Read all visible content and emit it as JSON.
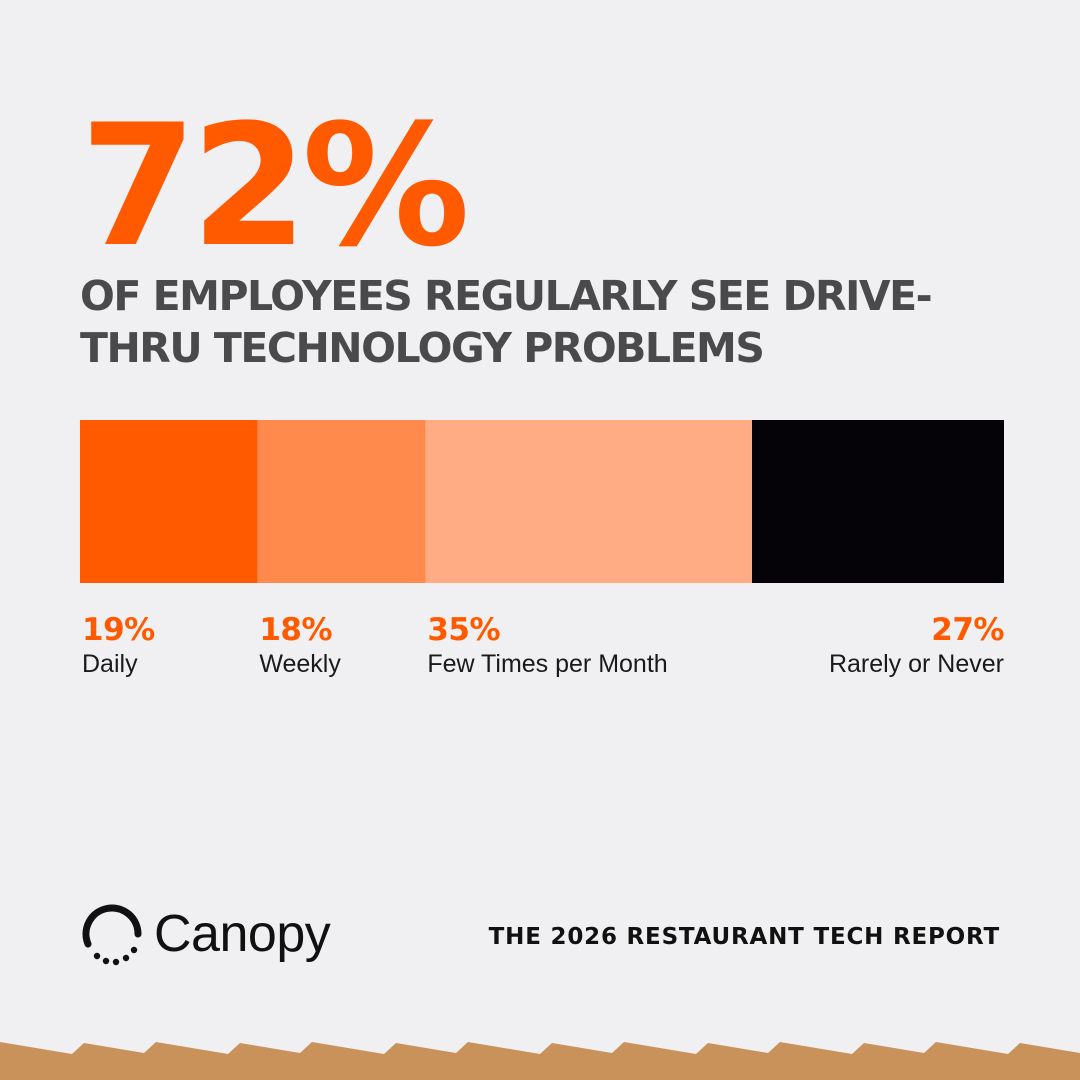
{
  "headline": "72%",
  "subheadline": "OF EMPLOYEES REGULARLY SEE DRIVE-THRU TECHNOLOGY PROBLEMS",
  "chart_data": {
    "type": "bar",
    "orientation": "horizontal-stacked-100",
    "categories": [
      "Daily",
      "Weekly",
      "Few Times per Month",
      "Rarely or Never"
    ],
    "values": [
      19,
      18,
      35,
      27
    ],
    "value_labels": [
      "19%",
      "18%",
      "35%",
      "27%"
    ],
    "colors": [
      "#ff5a00",
      "#ff8a4c",
      "#ffac84",
      "#050307"
    ],
    "legend": "below",
    "grid": false
  },
  "brand": {
    "logo_text": "Canopy",
    "report_title": "THE 2026 RESTAURANT TECH REPORT"
  },
  "colors": {
    "accent": "#ff5a00",
    "background": "#f0f0f2",
    "subheadline": "#4a4a4d",
    "torn_edge": "#c8925a"
  }
}
